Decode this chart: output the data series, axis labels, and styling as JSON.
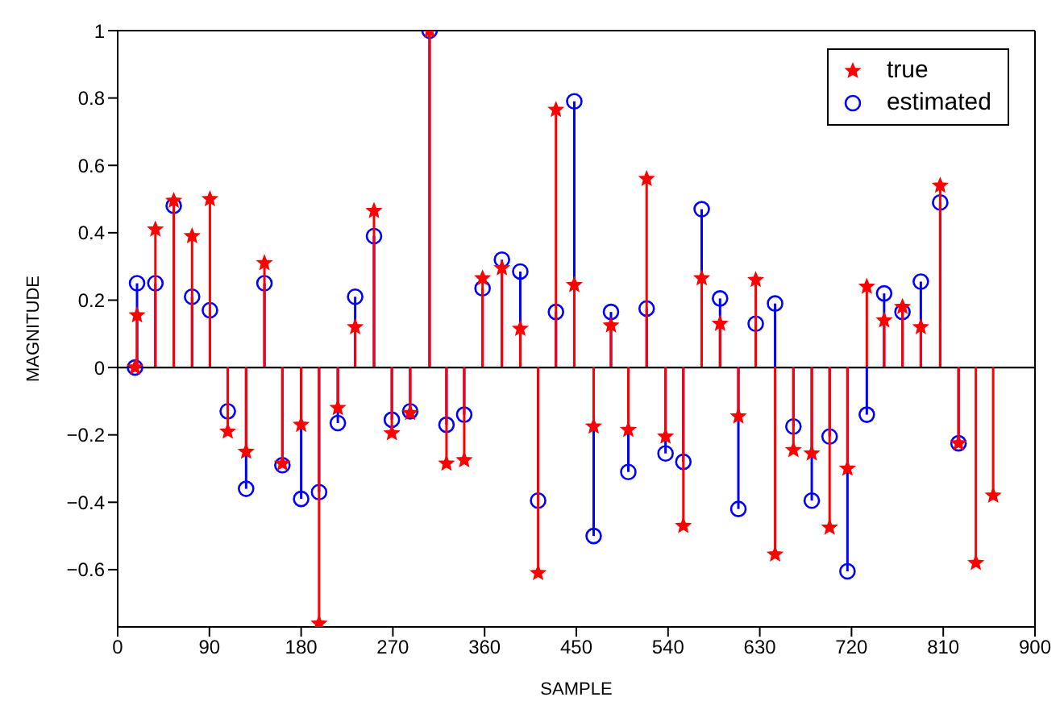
{
  "chart_data": {
    "type": "lollipop",
    "xlabel": "SAMPLE",
    "ylabel": "MAGNITUDE",
    "x": [
      17,
      19,
      37,
      55,
      73,
      90.5,
      108,
      126,
      144,
      161.6,
      180,
      197.6,
      216,
      233,
      251.5,
      269,
      287,
      306,
      322.6,
      340,
      358,
      377,
      395,
      412.5,
      430,
      448,
      467,
      484,
      501,
      519,
      537.5,
      555,
      573,
      591,
      609,
      626,
      645,
      663,
      681,
      698.5,
      716,
      735,
      752,
      770,
      788,
      807,
      825,
      842,
      859
    ],
    "series": [
      {
        "name": "estimated",
        "color": "#0000ff",
        "marker": "circle",
        "values": [
          0,
          0.25,
          0.25,
          0.48,
          0.21,
          0.17,
          -0.13,
          -0.36,
          0.25,
          -0.29,
          -0.39,
          -0.37,
          -0.165,
          0.21,
          0.39,
          -0.155,
          -0.13,
          1.0,
          -0.17,
          -0.14,
          0.235,
          0.32,
          0.285,
          -0.395,
          0.165,
          0.79,
          -0.5,
          0.165,
          -0.31,
          0.175,
          -0.255,
          -0.28,
          0.47,
          0.205,
          -0.42,
          0.13,
          0.19,
          -0.175,
          -0.395,
          -0.205,
          -0.605,
          -0.14,
          0.22,
          0.165,
          0.255,
          0.49,
          -0.225,
          null,
          null
        ]
      },
      {
        "name": "true",
        "color": "#ff0000",
        "marker": "star",
        "values": [
          0,
          0.155,
          0.41,
          0.495,
          0.39,
          0.5,
          -0.19,
          -0.25,
          0.31,
          -0.285,
          -0.17,
          -0.76,
          -0.12,
          0.12,
          0.465,
          -0.195,
          -0.135,
          1.0,
          -0.285,
          -0.275,
          0.265,
          0.295,
          0.115,
          -0.61,
          0.765,
          0.245,
          -0.175,
          0.125,
          -0.185,
          0.56,
          -0.205,
          -0.47,
          0.265,
          0.13,
          -0.145,
          0.26,
          -0.555,
          -0.245,
          -0.255,
          -0.475,
          -0.3,
          0.24,
          0.14,
          0.18,
          0.12,
          0.54,
          -0.225,
          -0.58,
          -0.38
        ]
      }
    ],
    "xlim": [
      0,
      900
    ],
    "xticks": [
      0,
      90,
      180,
      270,
      360,
      450,
      540,
      630,
      720,
      810,
      900
    ],
    "ylim": [
      -0.77,
      1
    ],
    "yticks": [
      {
        "value": -0.6,
        "label": "−0.6"
      },
      {
        "value": -0.4,
        "label": "−0.4"
      },
      {
        "value": -0.2,
        "label": "−0.2"
      },
      0,
      0.2,
      0.4,
      0.6,
      0.8,
      1
    ],
    "ref_lines": [
      {
        "axis": "y",
        "value": 0,
        "color": "#000000"
      }
    ],
    "legend": "top right"
  }
}
